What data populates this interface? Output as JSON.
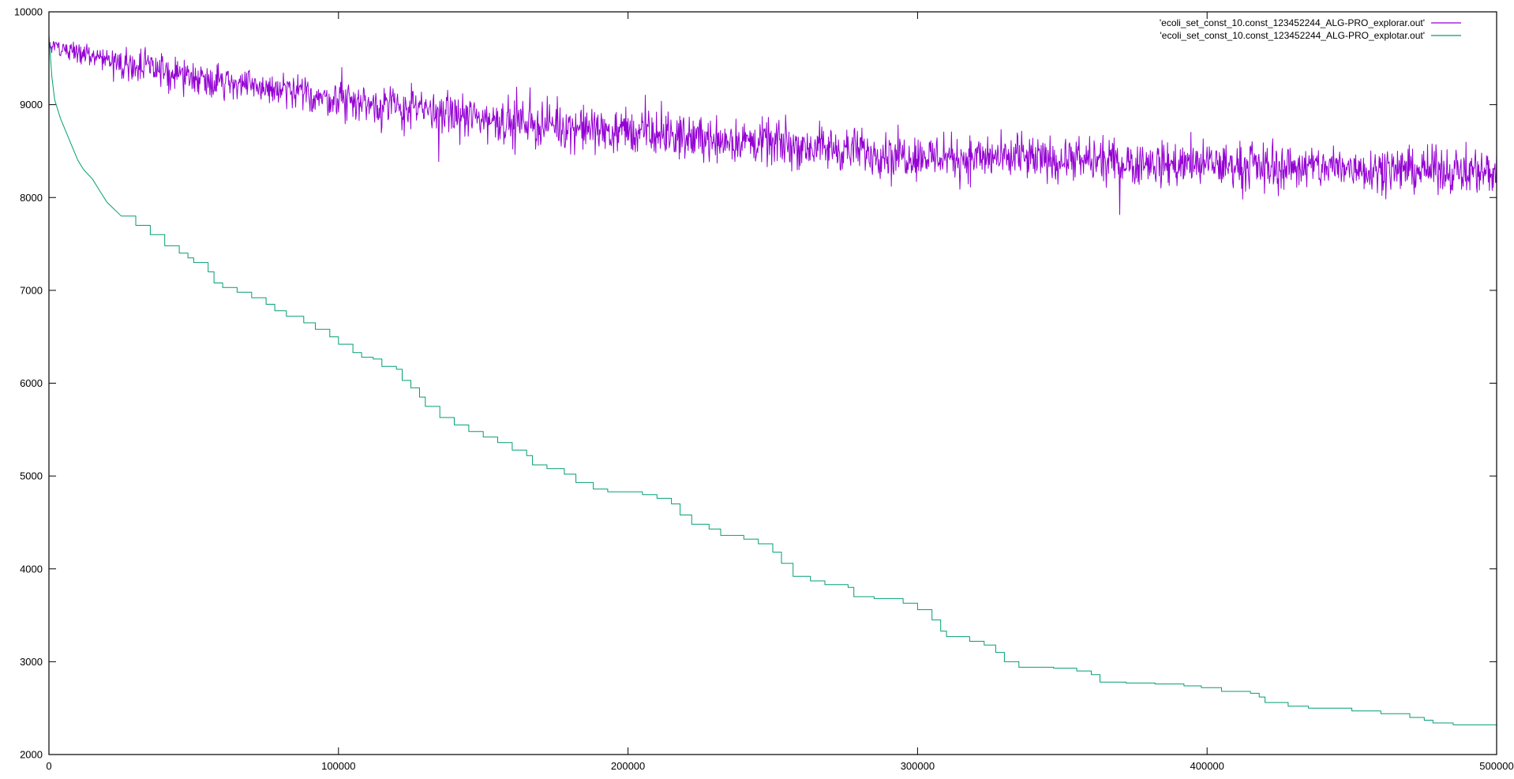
{
  "chart_data": {
    "type": "line",
    "title": "",
    "xlabel": "",
    "ylabel": "",
    "xlim": [
      0,
      500000
    ],
    "ylim": [
      2000,
      10000
    ],
    "grid": false,
    "legend_position": "top-right",
    "x_ticks": [
      0,
      100000,
      200000,
      300000,
      400000,
      500000
    ],
    "y_ticks": [
      2000,
      3000,
      4000,
      5000,
      6000,
      7000,
      8000,
      9000,
      10000
    ],
    "x_tick_labels": [
      "0",
      "100000",
      "200000",
      "300000",
      "400000",
      "500000"
    ],
    "y_tick_labels": [
      "2000",
      "3000",
      "4000",
      "5000",
      "6000",
      "7000",
      "8000",
      "9000",
      "10000"
    ],
    "series": [
      {
        "name": "'ecoli_set_const_10.const_123452244_ALG-PRO_explorar.out'",
        "color": "#9400d3",
        "style": "noisy",
        "trend": [
          [
            0,
            9650
          ],
          [
            25000,
            9450
          ],
          [
            50000,
            9300
          ],
          [
            100000,
            9050
          ],
          [
            150000,
            8850
          ],
          [
            200000,
            8700
          ],
          [
            250000,
            8580
          ],
          [
            300000,
            8450
          ],
          [
            350000,
            8400
          ],
          [
            400000,
            8350
          ],
          [
            450000,
            8320
          ],
          [
            500000,
            8280
          ]
        ],
        "noise_amplitude": 350
      },
      {
        "name": "'ecoli_set_const_10.const_123452244_ALG-PRO_explotar.out'",
        "color": "#009e73",
        "style": "step",
        "points": [
          [
            0,
            9750
          ],
          [
            1000,
            9300
          ],
          [
            2000,
            9050
          ],
          [
            4000,
            8850
          ],
          [
            6000,
            8700
          ],
          [
            8000,
            8550
          ],
          [
            10000,
            8400
          ],
          [
            12000,
            8300
          ],
          [
            15000,
            8200
          ],
          [
            18000,
            8050
          ],
          [
            20000,
            7950
          ],
          [
            25000,
            7800
          ],
          [
            30000,
            7700
          ],
          [
            35000,
            7600
          ],
          [
            40000,
            7480
          ],
          [
            45000,
            7400
          ],
          [
            48000,
            7350
          ],
          [
            50000,
            7300
          ],
          [
            55000,
            7200
          ],
          [
            57000,
            7080
          ],
          [
            60000,
            7030
          ],
          [
            65000,
            6980
          ],
          [
            70000,
            6920
          ],
          [
            75000,
            6850
          ],
          [
            78000,
            6780
          ],
          [
            82000,
            6720
          ],
          [
            88000,
            6650
          ],
          [
            92000,
            6580
          ],
          [
            97000,
            6500
          ],
          [
            100000,
            6420
          ],
          [
            105000,
            6330
          ],
          [
            108000,
            6280
          ],
          [
            112000,
            6260
          ],
          [
            115000,
            6180
          ],
          [
            120000,
            6150
          ],
          [
            122000,
            6030
          ],
          [
            125000,
            5950
          ],
          [
            128000,
            5850
          ],
          [
            130000,
            5750
          ],
          [
            135000,
            5630
          ],
          [
            140000,
            5550
          ],
          [
            145000,
            5480
          ],
          [
            150000,
            5420
          ],
          [
            155000,
            5360
          ],
          [
            160000,
            5280
          ],
          [
            165000,
            5220
          ],
          [
            167000,
            5120
          ],
          [
            172000,
            5080
          ],
          [
            178000,
            5020
          ],
          [
            182000,
            4930
          ],
          [
            188000,
            4860
          ],
          [
            193000,
            4830
          ],
          [
            205000,
            4800
          ],
          [
            210000,
            4760
          ],
          [
            215000,
            4700
          ],
          [
            218000,
            4580
          ],
          [
            222000,
            4480
          ],
          [
            228000,
            4430
          ],
          [
            232000,
            4360
          ],
          [
            240000,
            4320
          ],
          [
            245000,
            4270
          ],
          [
            250000,
            4180
          ],
          [
            253000,
            4060
          ],
          [
            257000,
            3920
          ],
          [
            263000,
            3870
          ],
          [
            268000,
            3830
          ],
          [
            276000,
            3800
          ],
          [
            278000,
            3700
          ],
          [
            285000,
            3680
          ],
          [
            295000,
            3630
          ],
          [
            300000,
            3560
          ],
          [
            305000,
            3450
          ],
          [
            308000,
            3330
          ],
          [
            310000,
            3270
          ],
          [
            318000,
            3220
          ],
          [
            323000,
            3180
          ],
          [
            327000,
            3100
          ],
          [
            330000,
            3000
          ],
          [
            335000,
            2940
          ],
          [
            347000,
            2930
          ],
          [
            355000,
            2900
          ],
          [
            360000,
            2860
          ],
          [
            363000,
            2780
          ],
          [
            372000,
            2770
          ],
          [
            382000,
            2760
          ],
          [
            392000,
            2740
          ],
          [
            398000,
            2720
          ],
          [
            405000,
            2680
          ],
          [
            415000,
            2660
          ],
          [
            418000,
            2620
          ],
          [
            420000,
            2560
          ],
          [
            428000,
            2520
          ],
          [
            435000,
            2500
          ],
          [
            450000,
            2470
          ],
          [
            460000,
            2440
          ],
          [
            470000,
            2400
          ],
          [
            475000,
            2370
          ],
          [
            478000,
            2340
          ],
          [
            485000,
            2320
          ],
          [
            495000,
            2320
          ],
          [
            500000,
            2300
          ]
        ]
      }
    ]
  }
}
